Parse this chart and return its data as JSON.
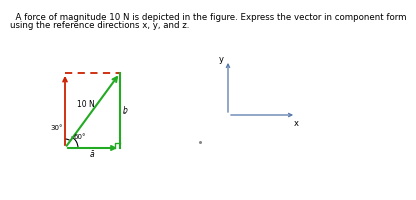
{
  "title_line1": "  A force of magnitude 10 N is depicted in the figure. Express the vector in component form",
  "title_line2": "using the reference directions x, y, and z.",
  "title_fontsize": 6.2,
  "bg_color": "#ffffff",
  "vector_label": "10 N",
  "angle_label1": "30°",
  "angle_label2": "60°",
  "b_hat_label": "ḇ",
  "a_hat_label": "ā",
  "vec_color": "#22aa22",
  "red_color": "#cc2200",
  "arrow_color": "#5577aa",
  "x_label": "x",
  "y_label": "y",
  "dot_color": "#888888",
  "ox": 55,
  "oy": 42,
  "rw": 55,
  "rh": 75
}
